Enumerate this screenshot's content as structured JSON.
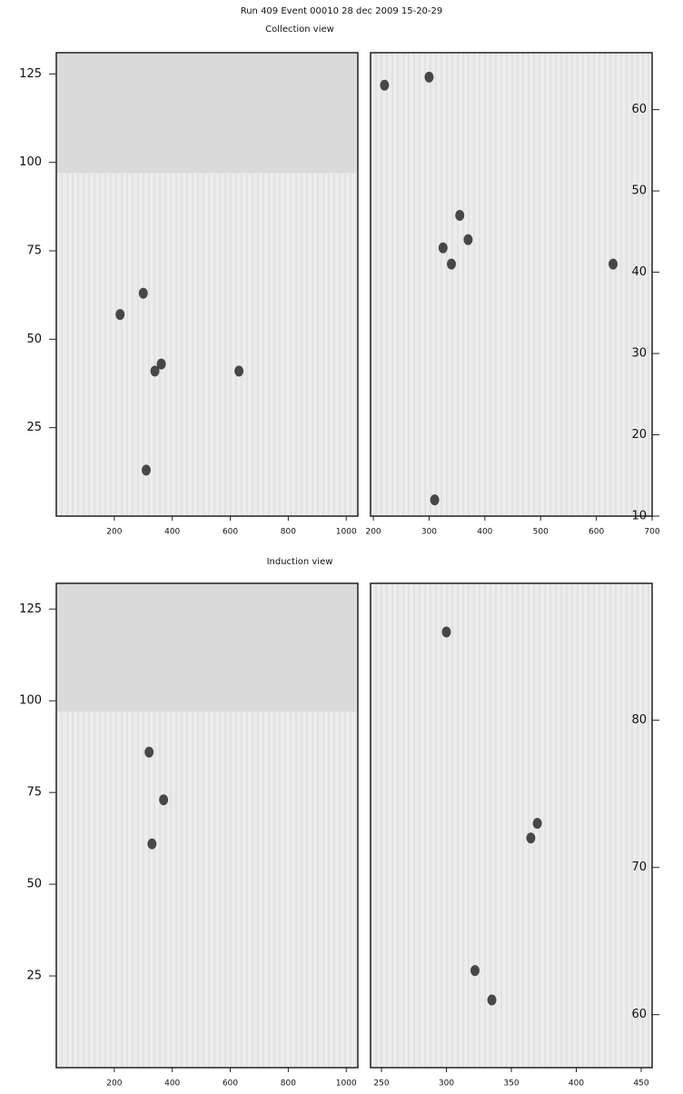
{
  "chart_data": [
    {
      "type": "scatter",
      "title": "Run 409  Event 00010   28 dec 2009  15-20-29",
      "subtitle": "Collection view",
      "xlim": [
        0,
        1040
      ],
      "ylim": [
        0,
        131
      ],
      "xticks": [
        200,
        400,
        600,
        800,
        1000
      ],
      "yticks": [
        25,
        50,
        75,
        100,
        125
      ],
      "y_axis_side": "left",
      "active_ymax": 97,
      "color": "#111",
      "x": [
        340,
        362,
        310,
        630,
        220,
        300
      ],
      "y": [
        41,
        43,
        13,
        41,
        57,
        63
      ]
    },
    {
      "type": "scatter",
      "xlim": [
        195,
        700
      ],
      "ylim": [
        10,
        67
      ],
      "xticks": [
        200,
        300,
        400,
        500,
        600,
        700
      ],
      "yticks": [
        10,
        20,
        30,
        40,
        50,
        60
      ],
      "y_axis_side": "right",
      "color": "#111",
      "x": [
        325,
        340,
        370,
        355,
        310,
        220,
        300,
        630
      ],
      "y": [
        43,
        41,
        44,
        47,
        12,
        63,
        64,
        41
      ]
    },
    {
      "type": "scatter",
      "subtitle": "Induction view",
      "xlim": [
        0,
        1040
      ],
      "ylim": [
        0,
        132
      ],
      "xticks": [
        200,
        400,
        600,
        800,
        1000
      ],
      "yticks": [
        25,
        50,
        75,
        100,
        125
      ],
      "y_axis_side": "left",
      "active_ymax": 97,
      "color": "#111",
      "x": [
        370,
        330,
        320
      ],
      "y": [
        73,
        61,
        86
      ]
    },
    {
      "type": "scatter",
      "xlim": [
        241.6,
        458.4
      ],
      "ylim": [
        56.4,
        89.3
      ],
      "xticks": [
        250,
        300,
        350,
        400,
        450
      ],
      "yticks": [
        60,
        70,
        80
      ],
      "y_axis_side": "right",
      "color": "#111",
      "x": [
        370,
        365,
        335,
        322,
        300
      ],
      "y": [
        73,
        72,
        61,
        63,
        86
      ]
    }
  ]
}
